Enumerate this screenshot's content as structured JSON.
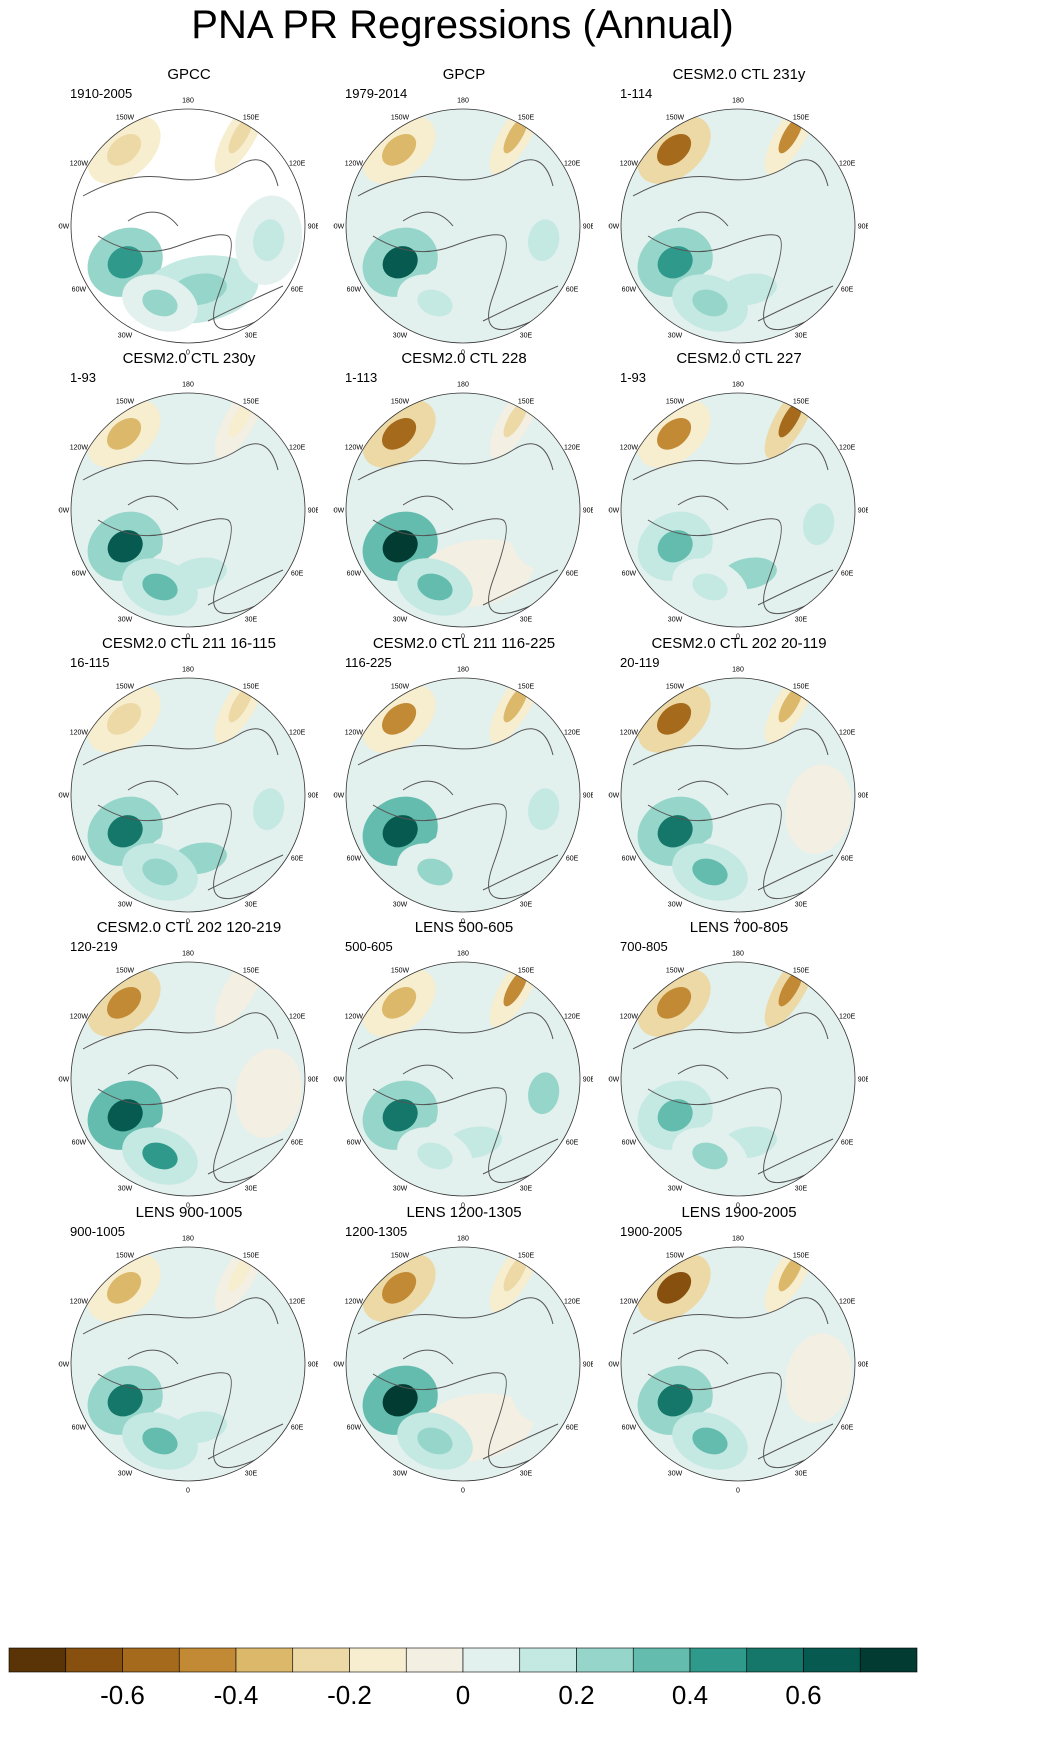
{
  "title": "PNA PR Regressions (Annual)",
  "chart_data": {
    "type": "polar-contour-map-grid",
    "title": "PNA PR Regressions (Annual)",
    "projection": "north-polar-stereographic",
    "longitude_labels": [
      "180",
      "150E",
      "120E",
      "90E",
      "60E",
      "30E",
      "0",
      "30W",
      "60W",
      "90W",
      "120W",
      "150W"
    ],
    "panels": [
      {
        "title": "GPCC",
        "period": "1910-2005"
      },
      {
        "title": "GPCP",
        "period": "1979-2014"
      },
      {
        "title": "CESM2.0 CTL 231y",
        "period": "1-114"
      },
      {
        "title": "CESM2.0 CTL 230y",
        "period": "1-93"
      },
      {
        "title": "CESM2.0 CTL 228",
        "period": "1-113"
      },
      {
        "title": "CESM2.0 CTL 227",
        "period": "1-93"
      },
      {
        "title": "CESM2.0 CTL 211 16-115",
        "period": "16-115"
      },
      {
        "title": "CESM2.0 CTL 211 116-225",
        "period": "116-225"
      },
      {
        "title": "CESM2.0 CTL 202 20-119",
        "period": "20-119"
      },
      {
        "title": "CESM2.0 CTL 202 120-219",
        "period": "120-219"
      },
      {
        "title": "LENS 500-605",
        "period": "500-605"
      },
      {
        "title": "LENS 700-805",
        "period": "700-805"
      },
      {
        "title": "LENS 900-1005",
        "period": "900-1005"
      },
      {
        "title": "LENS 1200-1305",
        "period": "1200-1305"
      },
      {
        "title": "LENS 1900-2005",
        "period": "1900-2005"
      }
    ],
    "colorbar": {
      "levels": [
        -0.7,
        -0.6,
        -0.5,
        -0.4,
        -0.3,
        -0.2,
        -0.1,
        0,
        0.1,
        0.2,
        0.3,
        0.4,
        0.5,
        0.6,
        0.7
      ],
      "colors": [
        "#5a3307",
        "#87500f",
        "#a56a1c",
        "#c28a35",
        "#dcb96a",
        "#edd9a5",
        "#f7edcf",
        "#f3efe3",
        "#e2f0ee",
        "#c4e8e2",
        "#96d5ca",
        "#63bcae",
        "#2f9a8b",
        "#14776a",
        "#075a4f",
        "#023b32"
      ],
      "tick_labels": [
        "-0.6",
        "-0.4",
        "-0.2",
        "0",
        "0.2",
        "0.4",
        "0.6"
      ],
      "tick_values": [
        -0.6,
        -0.4,
        -0.2,
        0,
        0.2,
        0.4,
        0.6
      ]
    }
  }
}
